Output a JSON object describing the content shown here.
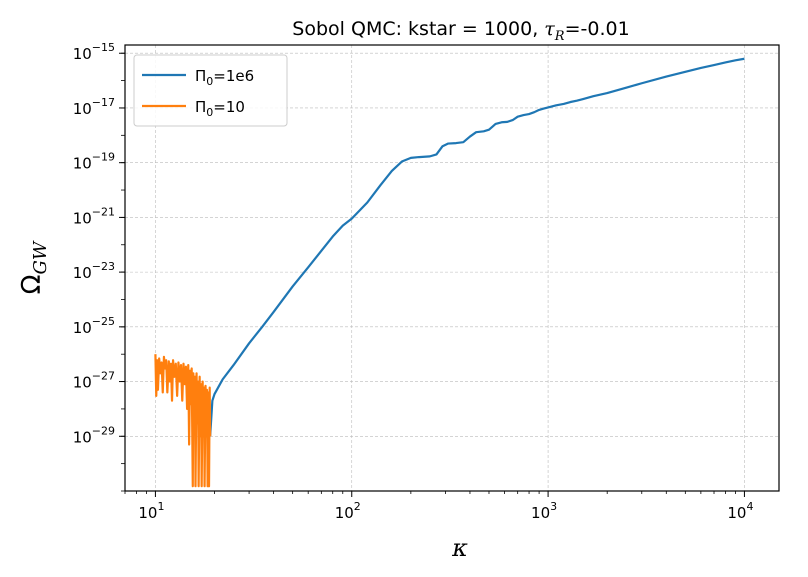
{
  "chart_data": {
    "type": "line",
    "title": "Sobol QMC: kstar = 1000, τR=-0.01",
    "title_parts": {
      "prefix": "Sobol QMC: kstar = 1000, ",
      "tau": "τ",
      "tau_sub": "R",
      "suffix": "=-0.01"
    },
    "xlabel": "κ",
    "ylabel": "Ω",
    "ylabel_sub": "GW",
    "x_scale": "log",
    "y_scale": "log",
    "xlim": [
      7,
      15000
    ],
    "ylim": [
      1e-31,
      2e-15
    ],
    "x_ticks": [
      {
        "value": 10,
        "base": "10",
        "exp": "1"
      },
      {
        "value": 100,
        "base": "10",
        "exp": "2"
      },
      {
        "value": 1000,
        "base": "10",
        "exp": "3"
      },
      {
        "value": 10000,
        "base": "10",
        "exp": "4"
      }
    ],
    "y_ticks": [
      {
        "value": 1e-15,
        "base": "10",
        "exp": "−15"
      },
      {
        "value": 1e-17,
        "base": "10",
        "exp": "−17"
      },
      {
        "value": 1e-19,
        "base": "10",
        "exp": "−19"
      },
      {
        "value": 1e-21,
        "base": "10",
        "exp": "−21"
      },
      {
        "value": 1e-23,
        "base": "10",
        "exp": "−23"
      },
      {
        "value": 1e-25,
        "base": "10",
        "exp": "−25"
      },
      {
        "value": 1e-27,
        "base": "10",
        "exp": "−27"
      },
      {
        "value": 1e-29,
        "base": "10",
        "exp": "−29"
      }
    ],
    "grid": true,
    "legend_position": "top-left",
    "series": [
      {
        "name": "Π0=1e6",
        "name_parts": {
          "base": "Π",
          "sub": "0",
          "rest": "=1e6"
        },
        "color": "#1f77b4",
        "points": [
          [
            19,
            1e-29
          ],
          [
            19.5,
            2e-28
          ],
          [
            20,
            3.5e-28
          ],
          [
            22,
            1.2e-27
          ],
          [
            25,
            4e-27
          ],
          [
            30,
            2.5e-26
          ],
          [
            35,
            1e-25
          ],
          [
            40,
            3.5e-25
          ],
          [
            50,
            3e-24
          ],
          [
            60,
            1.5e-23
          ],
          [
            70,
            6e-23
          ],
          [
            80,
            2e-22
          ],
          [
            90,
            5e-22
          ],
          [
            100,
            9e-22
          ],
          [
            120,
            3.5e-21
          ],
          [
            140,
            1.5e-20
          ],
          [
            160,
            5e-20
          ],
          [
            180,
            1.1e-19
          ],
          [
            200,
            1.5e-19
          ],
          [
            220,
            1.6e-19
          ],
          [
            250,
            1.7e-19
          ],
          [
            270,
            2e-19
          ],
          [
            290,
            4e-19
          ],
          [
            310,
            5e-19
          ],
          [
            340,
            5.2e-19
          ],
          [
            370,
            5.6e-19
          ],
          [
            400,
            9e-19
          ],
          [
            430,
            1.3e-18
          ],
          [
            470,
            1.4e-18
          ],
          [
            500,
            1.6e-18
          ],
          [
            540,
            2.6e-18
          ],
          [
            580,
            3e-18
          ],
          [
            620,
            3.1e-18
          ],
          [
            660,
            3.6e-18
          ],
          [
            700,
            4.8e-18
          ],
          [
            750,
            5.5e-18
          ],
          [
            800,
            6e-18
          ],
          [
            850,
            7e-18
          ],
          [
            900,
            8.5e-18
          ],
          [
            950,
            9.5e-18
          ],
          [
            1000,
            1.05e-17
          ],
          [
            1100,
            1.25e-17
          ],
          [
            1200,
            1.4e-17
          ],
          [
            1300,
            1.65e-17
          ],
          [
            1400,
            1.85e-17
          ],
          [
            1500,
            2.1e-17
          ],
          [
            1700,
            2.7e-17
          ],
          [
            2000,
            3.5e-17
          ],
          [
            2500,
            5.5e-17
          ],
          [
            3000,
            8e-17
          ],
          [
            4000,
            1.4e-16
          ],
          [
            5000,
            2.1e-16
          ],
          [
            6000,
            2.9e-16
          ],
          [
            7000,
            3.7e-16
          ],
          [
            8000,
            4.6e-16
          ],
          [
            9000,
            5.5e-16
          ],
          [
            10000,
            6.3e-16
          ]
        ]
      },
      {
        "name": "Π0=10",
        "name_parts": {
          "base": "Π",
          "sub": "0",
          "rest": "=10"
        },
        "color": "#ff7f0e",
        "points": [
          [
            10.0,
            1e-26
          ],
          [
            10.1,
            3e-28
          ],
          [
            10.2,
            6e-27
          ],
          [
            10.3,
            5e-28
          ],
          [
            10.45,
            7e-27
          ],
          [
            10.6,
            2e-27
          ],
          [
            10.75,
            5e-27
          ],
          [
            10.9,
            4e-28
          ],
          [
            11.05,
            8e-27
          ],
          [
            11.2,
            3e-27
          ],
          [
            11.35,
            6e-27
          ],
          [
            11.5,
            4e-28
          ],
          [
            11.7,
            5.5e-27
          ],
          [
            11.85,
            1e-27
          ],
          [
            12.0,
            4.5e-27
          ],
          [
            12.15,
            2e-28
          ],
          [
            12.3,
            6e-27
          ],
          [
            12.5,
            1.5e-27
          ],
          [
            12.7,
            4.5e-27
          ],
          [
            12.9,
            3e-28
          ],
          [
            13.1,
            5e-27
          ],
          [
            13.3,
            1e-27
          ],
          [
            13.5,
            4e-27
          ],
          [
            13.7,
            2e-28
          ],
          [
            13.9,
            4.5e-27
          ],
          [
            14.1,
            8e-28
          ],
          [
            14.3,
            3.5e-27
          ],
          [
            14.5,
            1e-28
          ],
          [
            14.7,
            4e-27
          ],
          [
            14.85,
            5e-30
          ],
          [
            15.0,
            2.5e-27
          ],
          [
            15.1,
            1.5e-28
          ],
          [
            15.3,
            3e-27
          ],
          [
            15.5,
            1.5e-31
          ],
          [
            15.6,
            2e-27
          ],
          [
            15.7,
            5e-29
          ],
          [
            15.9,
            1.5e-27
          ],
          [
            16.0,
            1.5e-31
          ],
          [
            16.2,
            2e-27
          ],
          [
            16.35,
            3e-29
          ],
          [
            16.5,
            1e-27
          ],
          [
            16.6,
            1.5e-31
          ],
          [
            16.8,
            1.5e-27
          ],
          [
            16.9,
            1e-29
          ],
          [
            17.1,
            8e-28
          ],
          [
            17.2,
            1.5e-31
          ],
          [
            17.4,
            1e-27
          ],
          [
            17.55,
            1e-29
          ],
          [
            17.7,
            6e-28
          ],
          [
            17.8,
            1.5e-31
          ],
          [
            18.0,
            7e-28
          ],
          [
            18.15,
            1e-29
          ],
          [
            18.3,
            5e-28
          ],
          [
            18.45,
            1.5e-31
          ],
          [
            18.6,
            4e-28
          ],
          [
            18.75,
            1.5e-31
          ],
          [
            18.9,
            6e-28
          ],
          [
            19.0,
            1e-29
          ]
        ]
      }
    ]
  }
}
